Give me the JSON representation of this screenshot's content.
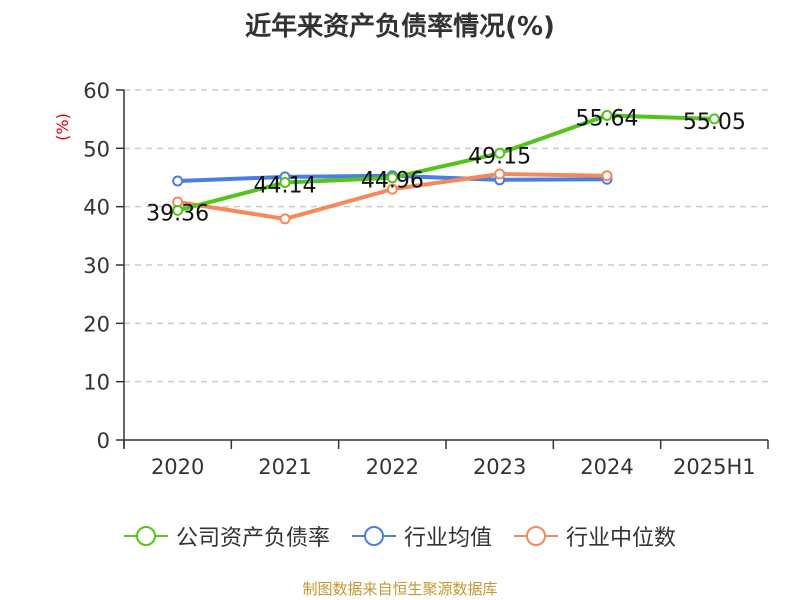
{
  "title": "近年来资产负债率情况(%)",
  "y_unit_label": "(%)",
  "source": "制图数据来自恒生聚源数据库",
  "colors": {
    "company": "#52c41a",
    "industry_avg": "#4a7ee0",
    "industry_median": "#f5895a",
    "unit_label": "#e00000",
    "source": "#c8962e"
  },
  "legend": [
    {
      "label": "公司资产负债率",
      "color": "#52c41a"
    },
    {
      "label": "行业均值",
      "color": "#4a7ee0"
    },
    {
      "label": "行业中位数",
      "color": "#f5895a"
    }
  ],
  "chart_data": {
    "type": "line",
    "title": "近年来资产负债率情况(%)",
    "xlabel": "",
    "ylabel": "(%)",
    "categories": [
      "2020",
      "2021",
      "2022",
      "2023",
      "2024",
      "2025H1"
    ],
    "ylim": [
      0,
      60
    ],
    "yticks": [
      0,
      10,
      20,
      30,
      40,
      50,
      60
    ],
    "grid": true,
    "legend_position": "bottom",
    "series": [
      {
        "name": "公司资产负债率",
        "values": [
          39.36,
          44.14,
          44.96,
          49.15,
          55.64,
          55.05
        ],
        "labels": [
          "39.36",
          "44.14",
          "44.96",
          "49.15",
          "55.64",
          "55.05"
        ]
      },
      {
        "name": "行业均值",
        "values": [
          44.4,
          45.1,
          45.3,
          44.6,
          44.7,
          null
        ]
      },
      {
        "name": "行业中位数",
        "values": [
          40.8,
          37.9,
          43.0,
          45.6,
          45.3,
          null
        ]
      }
    ]
  }
}
